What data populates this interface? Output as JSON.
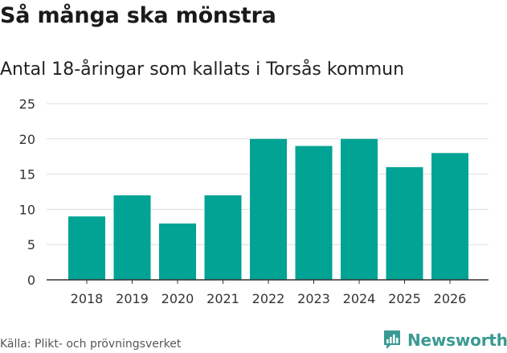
{
  "header": {
    "title": "Så många ska mönstra",
    "subtitle": "Antal 18-åringar som kallats i Torsås kommun"
  },
  "footer": {
    "source": "Källa: Plikt- och prövningsverket",
    "brand": "Newsworthy",
    "brand_icon": "newsworthy-logo-icon"
  },
  "colors": {
    "bar": "#00a394",
    "grid": "#dddddd",
    "axis": "#333333",
    "brand": "#3a9a93"
  },
  "chart_data": {
    "type": "bar",
    "title": "Så många ska mönstra",
    "subtitle": "Antal 18-åringar som kallats i Torsås kommun",
    "xlabel": "",
    "ylabel": "",
    "categories": [
      "2018",
      "2019",
      "2020",
      "2021",
      "2022",
      "2023",
      "2024",
      "2025",
      "2026"
    ],
    "values": [
      9,
      12,
      8,
      12,
      20,
      19,
      20,
      16,
      18
    ],
    "ylim": [
      0,
      25
    ],
    "yticks": [
      0,
      5,
      10,
      15,
      20,
      25
    ],
    "grid": true,
    "legend": "none"
  }
}
